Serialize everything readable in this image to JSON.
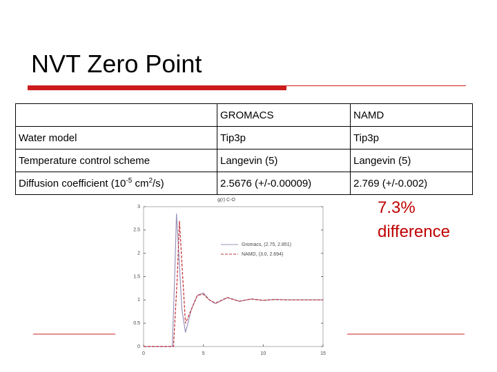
{
  "title": "NVT Zero Point",
  "table": {
    "columns": [
      "GROMACS",
      "NAMD"
    ],
    "rows": [
      {
        "label": [
          "Water model"
        ],
        "values": [
          "Tip3p",
          "Tip3p"
        ]
      },
      {
        "label": [
          "Temperature control scheme"
        ],
        "values": [
          "Langevin (5)",
          "Langevin (5)"
        ]
      },
      {
        "label": [
          "Diffusion coefficient  (10",
          "-5",
          " cm",
          "2",
          "/s)"
        ],
        "values": [
          "2.5676 (+/-0.00009)",
          "2.769 (+/-0.002)"
        ]
      }
    ]
  },
  "annotation": {
    "value_text": "7.3%",
    "caption": "difference"
  },
  "plot": {
    "title": "g(r) C-O",
    "xlim": [
      0,
      15
    ],
    "xticks": [
      0,
      5,
      10,
      15
    ],
    "ylim": [
      0,
      3
    ],
    "yticks": [
      0,
      0.5,
      1,
      1.5,
      2,
      2.5,
      3
    ],
    "series": [
      {
        "name": "Gromacs, (2.75, 2.851)",
        "color": "#9a8fb8",
        "dash": false,
        "x": [
          0,
          2.4,
          2.6,
          2.75,
          2.9,
          3.2,
          3.5,
          4,
          4.5,
          5,
          5.5,
          6,
          7,
          8,
          9,
          10,
          11,
          12,
          13,
          14,
          15
        ],
        "values": [
          0,
          0,
          1.5,
          2.851,
          2.2,
          0.8,
          0.3,
          0.8,
          1.1,
          1.15,
          1.0,
          0.92,
          1.05,
          0.97,
          1.02,
          0.99,
          1.01,
          1,
          1,
          1,
          1
        ]
      },
      {
        "name": "NAMD, (3.0, 2.694)",
        "color": "#c0282f",
        "dash": true,
        "x": [
          0,
          2.5,
          2.8,
          3.0,
          3.2,
          3.5,
          4,
          4.5,
          5,
          5.5,
          6,
          7,
          8,
          9,
          10,
          11,
          12,
          13,
          14,
          15
        ],
        "values": [
          0,
          0,
          1.4,
          2.694,
          1.8,
          0.5,
          0.8,
          1.1,
          1.12,
          1.0,
          0.93,
          1.05,
          0.97,
          1.02,
          0.99,
          1.01,
          1,
          1,
          1,
          1
        ]
      }
    ]
  }
}
